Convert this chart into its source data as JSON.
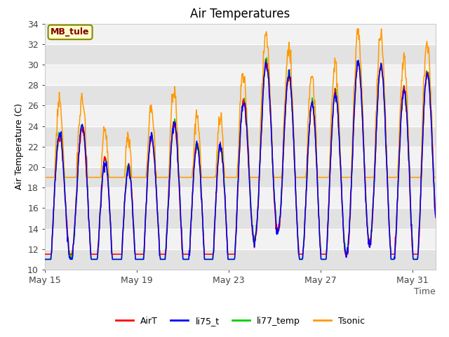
{
  "title": "Air Temperatures",
  "ylabel": "Air Temperature (C)",
  "xlabel": "Time",
  "ylim": [
    10,
    34
  ],
  "yticks": [
    10,
    12,
    14,
    16,
    18,
    20,
    22,
    24,
    26,
    28,
    30,
    32,
    34
  ],
  "xtick_labels": [
    "May 15",
    "May 19",
    "May 23",
    "May 27",
    "May 31"
  ],
  "annotation_text": "MB_tule",
  "annotation_bg": "#ffffcc",
  "annotation_border_color": "#888800",
  "annotation_text_color": "#800000",
  "line_colors": {
    "AirT": "#ff0000",
    "li75_t": "#0000ff",
    "li77_temp": "#00cc00",
    "Tsonic": "#ff9900"
  },
  "band_light": "#f2f2f2",
  "band_dark": "#e2e2e2",
  "n_days": 17,
  "samples_per_day": 48,
  "title_fontsize": 12,
  "axis_label_fontsize": 9,
  "tick_fontsize": 9,
  "legend_fontsize": 9
}
